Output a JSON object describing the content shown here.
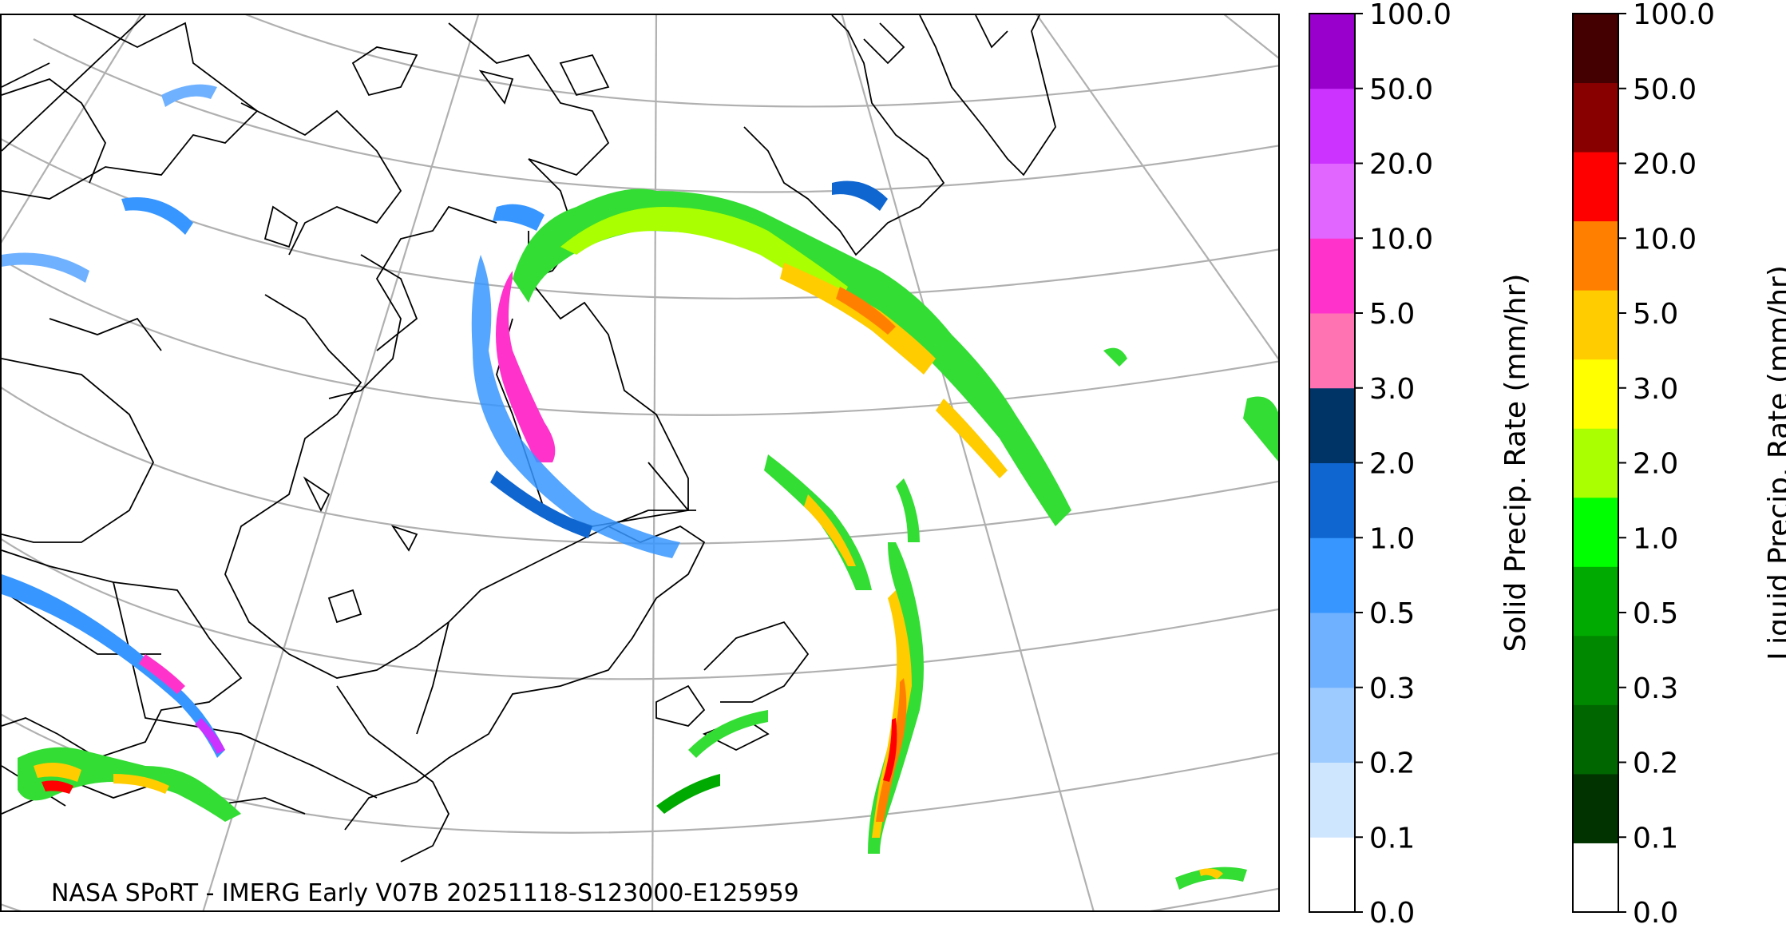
{
  "map": {
    "credit": "NASA SPoRT - IMERG Early V07B 20251118-S123000-E125959"
  },
  "colors": {
    "graticule": "#b0b0b0",
    "coast": "#000000"
  },
  "solid_colorbar": {
    "label": "Solid Precip. Rate (mm/hr)",
    "ticks": [
      "0.0",
      "0.1",
      "0.2",
      "0.3",
      "0.5",
      "1.0",
      "2.0",
      "3.0",
      "5.0",
      "10.0",
      "20.0",
      "50.0",
      "100.0"
    ],
    "colors": [
      "#ffffff",
      "#cfe6ff",
      "#9dcbff",
      "#6fb1ff",
      "#3796ff",
      "#0f66d0",
      "#003366",
      "#ff73b3",
      "#ff33cc",
      "#e066ff",
      "#cc33ff",
      "#9900cc"
    ]
  },
  "liquid_colorbar": {
    "label": "Liquid Precip. Rate (mm/hr)",
    "ticks": [
      "0.0",
      "0.1",
      "0.2",
      "0.3",
      "0.5",
      "1.0",
      "2.0",
      "3.0",
      "5.0",
      "10.0",
      "20.0",
      "50.0",
      "100.0"
    ],
    "colors": [
      "#ffffff",
      "#003300",
      "#006600",
      "#008800",
      "#00aa00",
      "#00ff00",
      "#aaff00",
      "#ffff00",
      "#ffcc00",
      "#ff8000",
      "#ff0000",
      "#880000",
      "#440000"
    ]
  }
}
